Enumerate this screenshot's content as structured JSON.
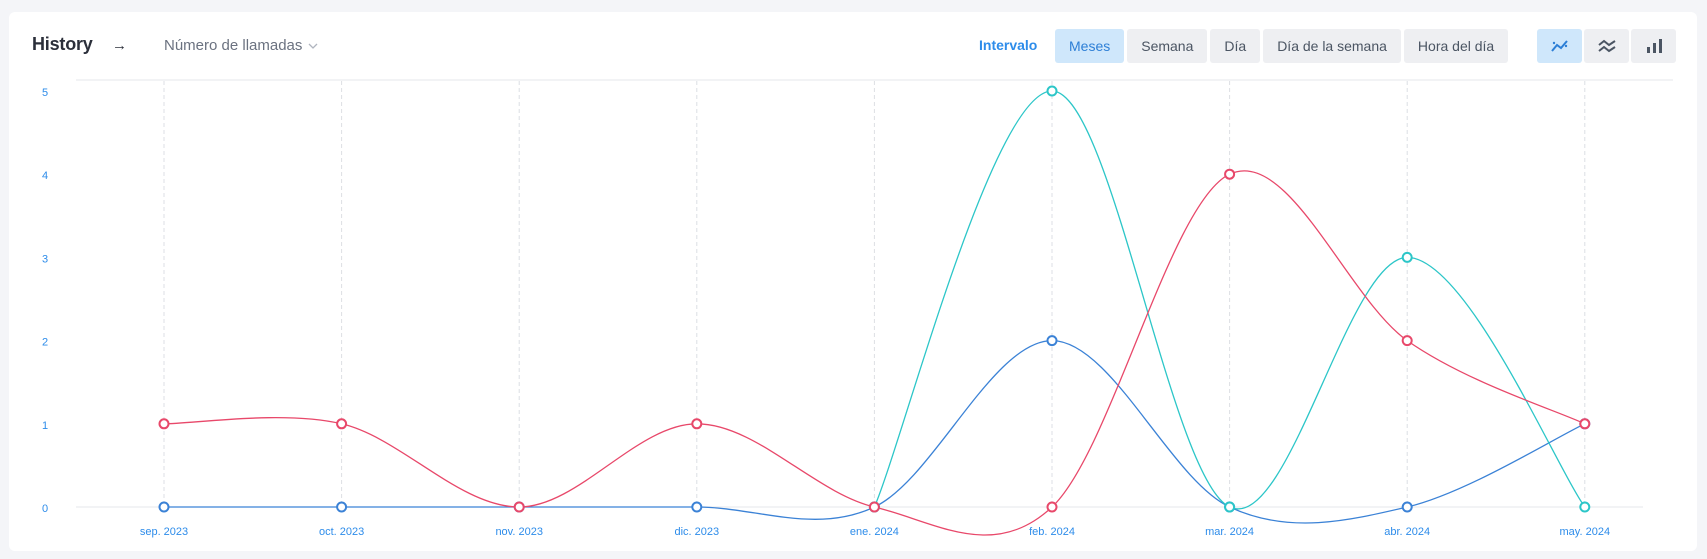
{
  "header": {
    "title": "History",
    "arrow": "→",
    "metric_label": "Número de llamadas",
    "interval_label": "Intervalo"
  },
  "interval_tabs": [
    "Meses",
    "Semana",
    "Día",
    "Día de la semana",
    "Hora del día"
  ],
  "active_tab": "Meses",
  "chart_modes": [
    {
      "name": "smooth-line-icon",
      "active": true
    },
    {
      "name": "stacked-line-icon",
      "active": false
    },
    {
      "name": "bar-chart-icon",
      "active": false
    }
  ],
  "colors": {
    "accent": "#2d8cea",
    "series_red": "#e8486a",
    "series_blue": "#3b82d6",
    "series_teal": "#2cc6c8"
  },
  "chart_data": {
    "type": "line",
    "categories": [
      "sep. 2023",
      "oct. 2023",
      "nov. 2023",
      "dic. 2023",
      "ene. 2024",
      "feb. 2024",
      "mar. 2024",
      "abr. 2024",
      "may. 2024"
    ],
    "series": [
      {
        "color": "#e8486a",
        "values": [
          1,
          1,
          0,
          1,
          0,
          0,
          4,
          2,
          1
        ]
      },
      {
        "color": "#3b82d6",
        "values": [
          0,
          0,
          0,
          0,
          0,
          2,
          0,
          0,
          1
        ]
      },
      {
        "color": "#2cc6c8",
        "values": [
          null,
          null,
          null,
          null,
          0,
          5,
          0,
          3,
          0
        ]
      }
    ],
    "yticks": [
      0,
      1,
      2,
      3,
      4,
      5
    ],
    "ylim": [
      0,
      5
    ],
    "title": "",
    "xlabel": "",
    "ylabel": "",
    "grid": "vertical dashed"
  }
}
